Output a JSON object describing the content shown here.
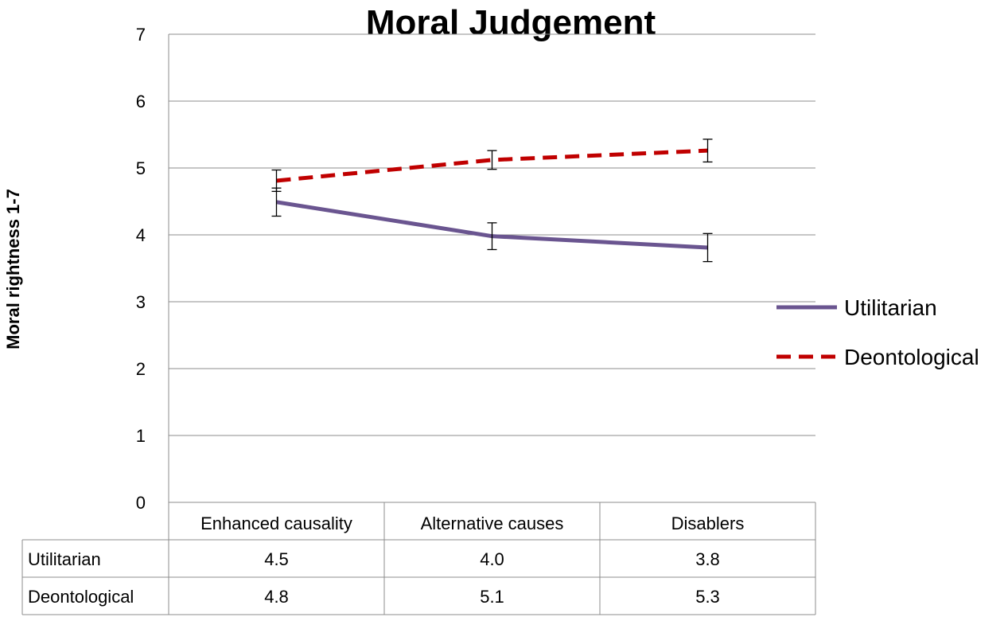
{
  "chart_data": {
    "type": "line",
    "title": "Moral Judgement",
    "xlabel": "",
    "ylabel": "Moral rightness 1-7",
    "ylim": [
      0,
      7
    ],
    "yticks": [
      0,
      1,
      2,
      3,
      4,
      5,
      6,
      7
    ],
    "grid": true,
    "legend_position": "right",
    "categories": [
      "Enhanced causality",
      "Alternative causes",
      "Disablers"
    ],
    "series": [
      {
        "name": "Utilitarian",
        "values": [
          4.49,
          3.98,
          3.81
        ],
        "table_values": [
          "4.5",
          "4.0",
          "3.8"
        ],
        "error": [
          0.21,
          0.2,
          0.21
        ],
        "color": "#6a5590",
        "style": "solid"
      },
      {
        "name": "Deontological",
        "values": [
          4.81,
          5.12,
          5.26
        ],
        "table_values": [
          "4.8",
          "5.1",
          "5.3"
        ],
        "error": [
          0.16,
          0.14,
          0.17
        ],
        "color": "#c00000",
        "style": "dashed"
      }
    ],
    "data_table": true
  }
}
